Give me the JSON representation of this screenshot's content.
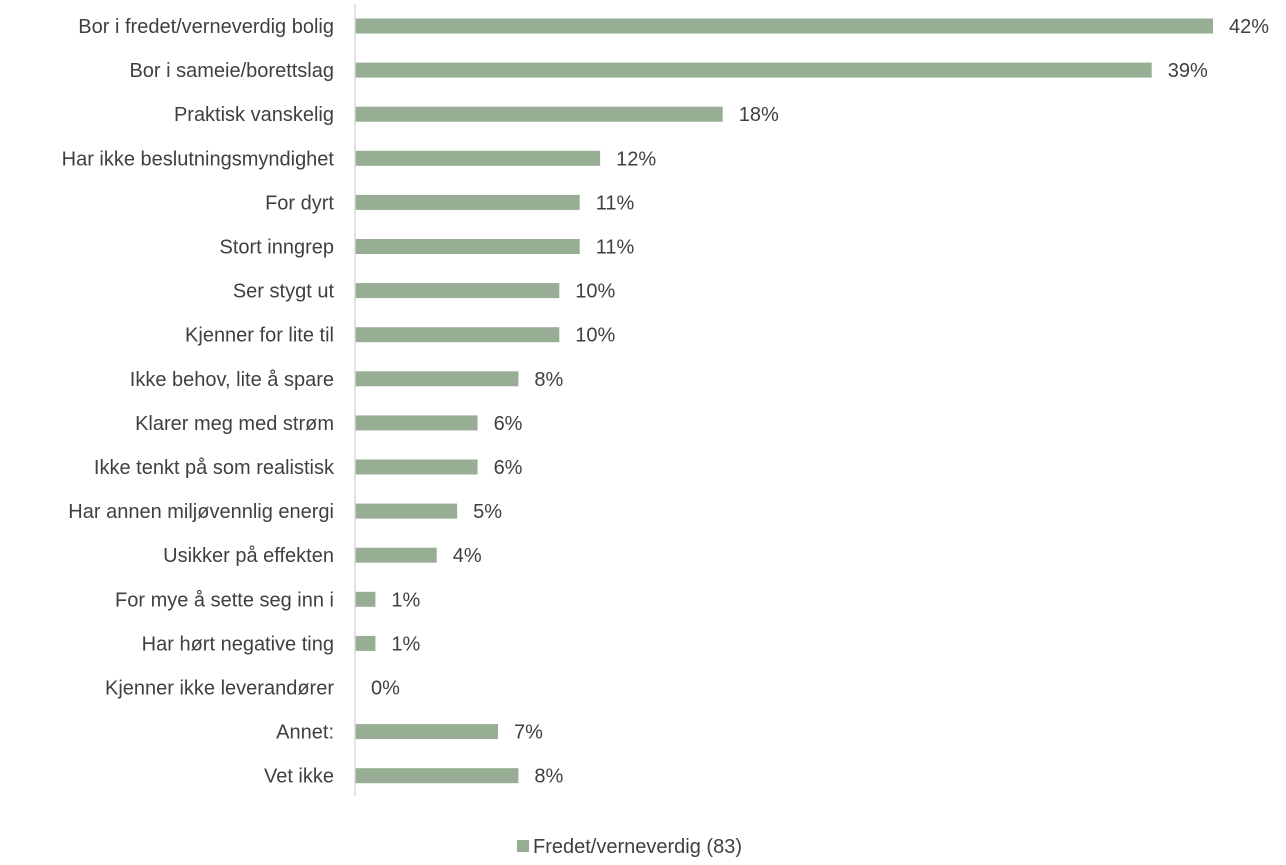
{
  "chart_data": {
    "type": "bar",
    "orientation": "horizontal",
    "categories": [
      "Bor i fredet/verneverdig bolig",
      "Bor i sameie/borettslag",
      "Praktisk vanskelig",
      "Har ikke beslutningsmyndighet",
      "For dyrt",
      "Stort inngrep",
      "Ser stygt ut",
      "Kjenner for lite til",
      "Ikke behov, lite å spare",
      "Klarer meg med strøm",
      "Ikke tenkt på som realistisk",
      "Har annen miljøvennlig energi",
      "Usikker på effekten",
      "For mye å sette seg inn i",
      "Har hørt negative ting",
      "Kjenner ikke leverandører",
      "Annet:",
      "Vet ikke"
    ],
    "series": [
      {
        "name": "Fredet/verneverdig (83)",
        "values": [
          42,
          39,
          18,
          12,
          11,
          11,
          10,
          10,
          8,
          6,
          6,
          5,
          4,
          1,
          1,
          0,
          7,
          8
        ],
        "labels": [
          "42%",
          "39%",
          "18%",
          "12%",
          "11%",
          "11%",
          "10%",
          "10%",
          "8%",
          "6%",
          "6%",
          "5%",
          "4%",
          "1%",
          "1%",
          "0%",
          "7%",
          "8%"
        ]
      }
    ],
    "xlim": [
      0,
      42
    ],
    "value_unit": "%",
    "grid": false,
    "legend": "bottom-center",
    "colors": {
      "bar": "#97ae95",
      "axis": "#d9d9d9",
      "text": "#404040"
    }
  }
}
